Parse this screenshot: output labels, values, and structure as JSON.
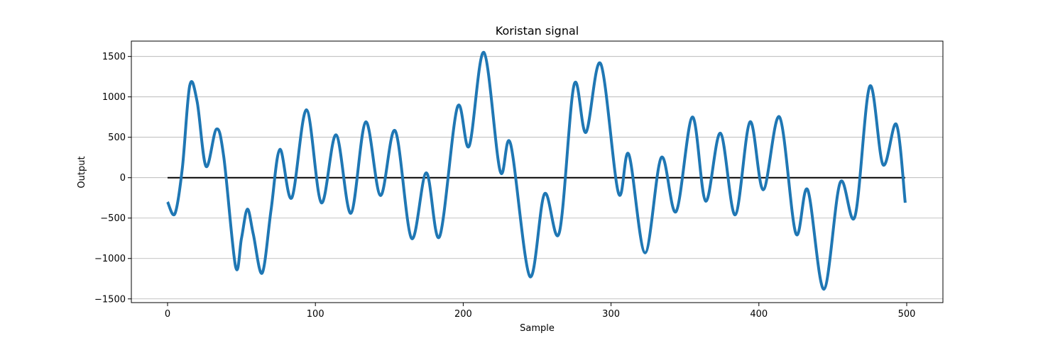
{
  "chart_data": {
    "type": "line",
    "title": "Koristan signal",
    "xlabel": "Sample",
    "ylabel": "Output",
    "xlim": [
      -24.5,
      524.5
    ],
    "ylim": [
      -1546,
      1690
    ],
    "xticks": [
      0,
      100,
      200,
      300,
      400,
      500
    ],
    "yticks": [
      -1500,
      -1000,
      -500,
      0,
      500,
      1000,
      1500
    ],
    "xtick_labels": [
      "0",
      "100",
      "200",
      "300",
      "400",
      "500"
    ],
    "ytick_labels": [
      "−1500",
      "−1000",
      "−500",
      "0",
      "500",
      "1000",
      "1500"
    ],
    "grid": "y-major",
    "line_color": "#1f77b4",
    "baseline": {
      "x": [
        0,
        499
      ],
      "y": 0,
      "color": "#000000"
    },
    "series": [
      {
        "keypoints": [
          [
            0,
            -300
          ],
          [
            5,
            -445
          ],
          [
            10,
            120
          ],
          [
            15,
            1140
          ],
          [
            20,
            940
          ],
          [
            26,
            140
          ],
          [
            33,
            600
          ],
          [
            38,
            260
          ],
          [
            46,
            -1100
          ],
          [
            50,
            -750
          ],
          [
            54,
            -390
          ],
          [
            58,
            -700
          ],
          [
            64,
            -1180
          ],
          [
            70,
            -400
          ],
          [
            76,
            350
          ],
          [
            84,
            -250
          ],
          [
            94,
            840
          ],
          [
            104,
            -310
          ],
          [
            114,
            530
          ],
          [
            124,
            -440
          ],
          [
            134,
            690
          ],
          [
            144,
            -220
          ],
          [
            154,
            580
          ],
          [
            165,
            -750
          ],
          [
            175,
            60
          ],
          [
            184,
            -730
          ],
          [
            196,
            870
          ],
          [
            204,
            390
          ],
          [
            214,
            1550
          ],
          [
            225,
            80
          ],
          [
            232,
            420
          ],
          [
            245,
            -1220
          ],
          [
            255,
            -200
          ],
          [
            265,
            -680
          ],
          [
            275,
            1150
          ],
          [
            283,
            560
          ],
          [
            293,
            1410
          ],
          [
            305,
            -190
          ],
          [
            312,
            290
          ],
          [
            323,
            -930
          ],
          [
            334,
            250
          ],
          [
            344,
            -420
          ],
          [
            355,
            750
          ],
          [
            364,
            -290
          ],
          [
            374,
            550
          ],
          [
            384,
            -460
          ],
          [
            394,
            690
          ],
          [
            403,
            -150
          ],
          [
            414,
            750
          ],
          [
            425,
            -690
          ],
          [
            433,
            -150
          ],
          [
            444,
            -1380
          ],
          [
            455,
            -60
          ],
          [
            465,
            -480
          ],
          [
            475,
            1130
          ],
          [
            484,
            160
          ],
          [
            493,
            660
          ],
          [
            499,
            -310
          ]
        ]
      }
    ]
  }
}
